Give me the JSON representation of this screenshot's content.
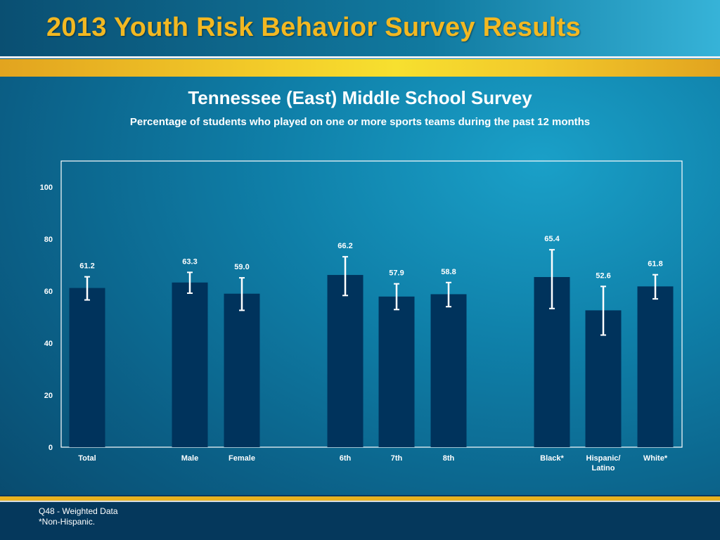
{
  "header": {
    "title": "2013 Youth Risk Behavior Survey Results"
  },
  "footnotes": [
    "Q48 - Weighted Data",
    "*Non-Hispanic."
  ],
  "colors": {
    "bar": "#00335c",
    "error_bar": "#ffffff",
    "title_gold": "#f2b822",
    "accent_gold": "#f4cf2a"
  },
  "chart_data": {
    "type": "bar",
    "title": "Tennessee (East) Middle School Survey",
    "subtitle": "Percentage of students who played on one or more sports teams during the past 12 months",
    "xlabel": "",
    "ylabel": "",
    "ylim": [
      0,
      100
    ],
    "yticks": [
      0,
      20,
      40,
      60,
      80,
      100
    ],
    "grid": false,
    "categories": [
      "Total",
      "Male",
      "Female",
      "6th",
      "7th",
      "8th",
      "Black*",
      "Hispanic/ Latino",
      "White*"
    ],
    "category_lines": [
      [
        "Total"
      ],
      [
        "Male"
      ],
      [
        "Female"
      ],
      [
        "6th"
      ],
      [
        "7th"
      ],
      [
        "8th"
      ],
      [
        "Black*"
      ],
      [
        "Hispanic/",
        "Latino"
      ],
      [
        "White*"
      ]
    ],
    "groups": [
      [
        "Total"
      ],
      [
        "Male",
        "Female"
      ],
      [
        "6th",
        "7th",
        "8th"
      ],
      [
        "Black*",
        "Hispanic/ Latino",
        "White*"
      ]
    ],
    "values": [
      61.2,
      63.3,
      59.0,
      66.2,
      57.9,
      58.8,
      65.4,
      52.6,
      61.8
    ],
    "value_labels": [
      "61.2",
      "63.3",
      "59.0",
      "66.2",
      "57.9",
      "58.8",
      "65.4",
      "52.6",
      "61.8"
    ],
    "error_low": [
      56.6,
      59.2,
      52.6,
      58.3,
      52.9,
      54.0,
      53.3,
      43.1,
      57.0
    ],
    "error_high": [
      65.5,
      67.2,
      65.1,
      73.2,
      62.8,
      63.3,
      75.9,
      61.8,
      66.3
    ]
  }
}
